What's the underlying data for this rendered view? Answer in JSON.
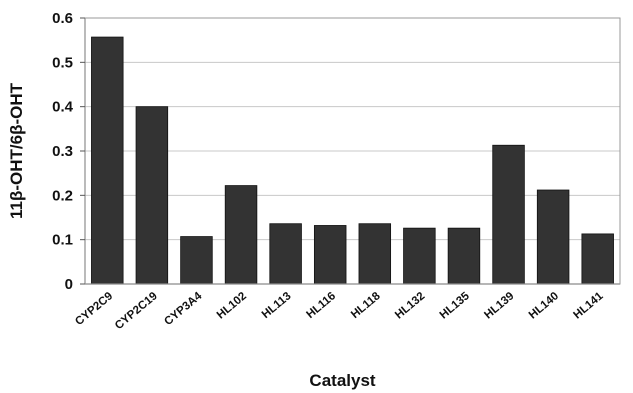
{
  "chart_data": {
    "type": "bar",
    "xlabel": "Catalyst",
    "ylabel": "11β-OHT/6β-OHT",
    "ylim": [
      0,
      0.6
    ],
    "yticks": [
      "0",
      "0.1",
      "0.2",
      "0.3",
      "0.4",
      "0.5",
      "0.6"
    ],
    "grid": true,
    "categories": [
      "CYP2C9",
      "CYP2C19",
      "CYP3A4",
      "HL102",
      "HL113",
      "HL116",
      "HL118",
      "HL132",
      "HL135",
      "HL139",
      "HL140",
      "HL141"
    ],
    "values": [
      0.557,
      0.4,
      0.107,
      0.222,
      0.136,
      0.132,
      0.136,
      0.126,
      0.126,
      0.313,
      0.212,
      0.113
    ],
    "bar_color": "#333333"
  }
}
